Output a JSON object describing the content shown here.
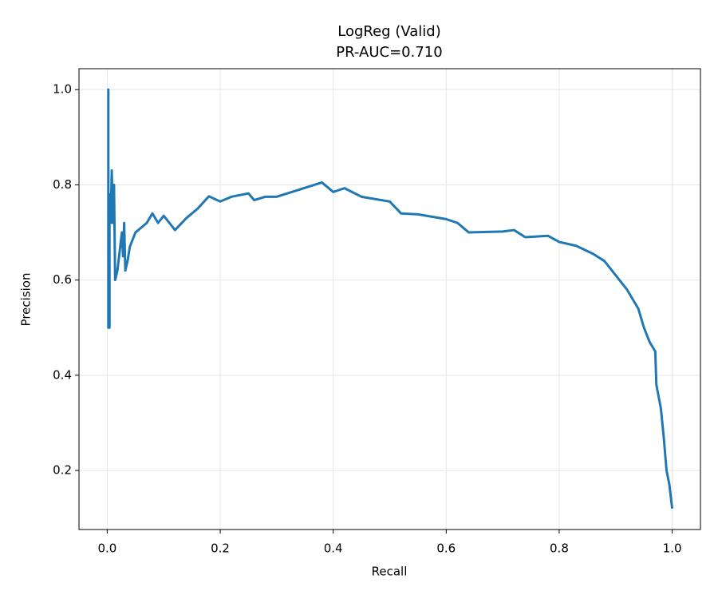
{
  "chart_data": {
    "type": "line",
    "title": "LogReg (Valid)",
    "subtitle": "PR-AUC=0.710",
    "x_label": "Recall",
    "y_label": "Precision",
    "x": [
      0.0,
      0.002,
      0.002,
      0.004,
      0.004,
      0.006,
      0.008,
      0.01,
      0.012,
      0.014,
      0.018,
      0.022,
      0.026,
      0.028,
      0.03,
      0.032,
      0.036,
      0.04,
      0.05,
      0.06,
      0.07,
      0.08,
      0.09,
      0.1,
      0.11,
      0.12,
      0.14,
      0.16,
      0.18,
      0.2,
      0.22,
      0.25,
      0.26,
      0.28,
      0.3,
      0.34,
      0.38,
      0.4,
      0.42,
      0.45,
      0.5,
      0.52,
      0.55,
      0.6,
      0.62,
      0.64,
      0.7,
      0.72,
      0.74,
      0.78,
      0.8,
      0.83,
      0.86,
      0.88,
      0.9,
      0.92,
      0.94,
      0.95,
      0.96,
      0.97,
      0.972,
      0.98,
      0.985,
      0.99,
      0.995,
      1.0
    ],
    "series": [
      {
        "name": "LogReg",
        "color": "#1f77b4",
        "values": [
          1.0,
          1.0,
          0.5,
          0.5,
          0.78,
          0.72,
          0.83,
          0.72,
          0.8,
          0.6,
          0.62,
          0.66,
          0.7,
          0.65,
          0.72,
          0.62,
          0.64,
          0.67,
          0.7,
          0.71,
          0.72,
          0.74,
          0.72,
          0.735,
          0.72,
          0.705,
          0.73,
          0.75,
          0.776,
          0.765,
          0.775,
          0.782,
          0.768,
          0.775,
          0.775,
          0.79,
          0.805,
          0.785,
          0.793,
          0.775,
          0.765,
          0.74,
          0.738,
          0.728,
          0.72,
          0.7,
          0.702,
          0.705,
          0.69,
          0.693,
          0.68,
          0.672,
          0.655,
          0.64,
          0.61,
          0.58,
          0.54,
          0.5,
          0.47,
          0.45,
          0.38,
          0.33,
          0.27,
          0.2,
          0.17,
          0.12
        ]
      }
    ],
    "xlim": [
      -0.05,
      1.05
    ],
    "ylim": [
      0.076,
      1.044
    ],
    "xticks": [
      {
        "value": 0,
        "label": "0.0"
      },
      0.2,
      0.4,
      0.6,
      0.8,
      {
        "value": 1,
        "label": "1.0"
      }
    ],
    "yticks": [
      0.2,
      0.4,
      0.6,
      0.8,
      {
        "value": 1,
        "label": "1.0"
      }
    ],
    "grid": true
  }
}
